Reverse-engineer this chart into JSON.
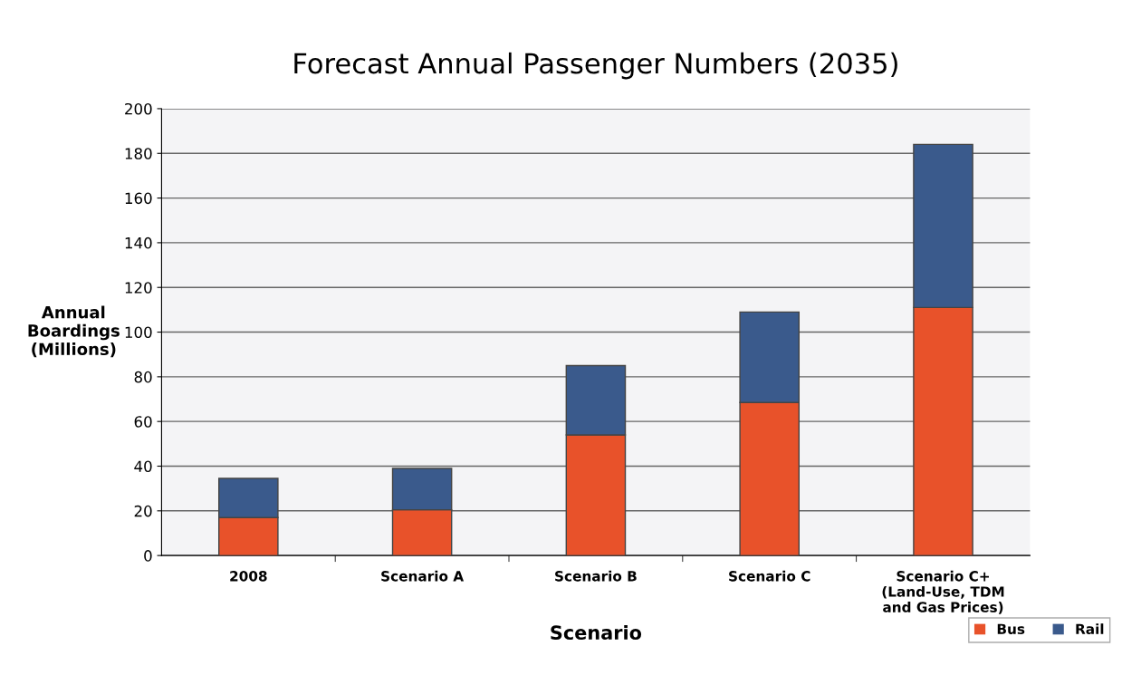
{
  "chart_data": {
    "type": "bar",
    "title": "Forecast Annual Passenger Numbers (2035)",
    "xlabel": "Scenario",
    "ylabel": "Annual\nBoardings\n(Millions)",
    "categories": [
      "2008",
      "Scenario A",
      "Scenario B",
      "Scenario C",
      "Scenario C+\n(Land-Use, TDM\nand Gas Prices)"
    ],
    "stacked": true,
    "series": [
      {
        "name": "Bus",
        "color": "#e8522a",
        "values": [
          17,
          20.5,
          54,
          68.5,
          111
        ]
      },
      {
        "name": "Rail",
        "color": "#3a5a8c",
        "values": [
          17.5,
          18.5,
          31,
          40.5,
          73
        ]
      }
    ],
    "ylim": [
      0,
      200
    ],
    "yticks": [
      0,
      20,
      40,
      60,
      80,
      100,
      120,
      140,
      160,
      180,
      200
    ],
    "grid": "y",
    "legend": "bottom right"
  }
}
